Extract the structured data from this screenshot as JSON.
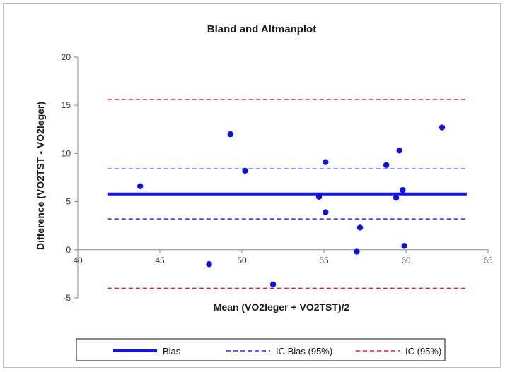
{
  "chart_data": {
    "type": "scatter",
    "title": "Bland and Altmanplot",
    "xlabel": "Mean (VO2leger + VO2TST)/2",
    "ylabel": "Difference (VO2TST - VO2leger)",
    "xlim": [
      40,
      65
    ],
    "ylim": [
      -5,
      20
    ],
    "x_ticks": [
      40,
      45,
      50,
      55,
      60,
      65
    ],
    "y_ticks": [
      -5,
      0,
      5,
      10,
      15,
      20
    ],
    "grid": false,
    "legend_position": "bottom",
    "points": {
      "color": "#1010e0",
      "x": [
        43.8,
        48.0,
        49.3,
        50.2,
        51.9,
        54.7,
        55.1,
        55.1,
        57.0,
        57.2,
        58.8,
        59.4,
        59.6,
        59.8,
        59.9,
        62.2
      ],
      "y": [
        6.6,
        -1.5,
        12.0,
        8.2,
        -3.6,
        5.5,
        9.1,
        3.9,
        -0.2,
        2.3,
        8.8,
        5.4,
        10.3,
        6.2,
        0.4,
        12.7
      ]
    },
    "lines": [
      {
        "name": "Bias",
        "y": 5.8,
        "x_range": [
          41.8,
          63.7
        ],
        "color": "#1414e6",
        "style": "solid"
      },
      {
        "name": "IC Bias (95%)",
        "y": 8.4,
        "x_range": [
          41.8,
          63.7
        ],
        "color": "#2a2ae6",
        "style": "dashed"
      },
      {
        "name": "IC Bias (95%)",
        "y": 3.2,
        "x_range": [
          41.8,
          63.7
        ],
        "color": "#2a2ae6",
        "style": "dashed",
        "legend": false
      },
      {
        "name": "IC (95%)",
        "y": 15.6,
        "x_range": [
          41.8,
          63.7
        ],
        "color": "#e02020",
        "style": "dashed"
      },
      {
        "name": "IC (95%)",
        "y": -4.0,
        "x_range": [
          41.8,
          63.7
        ],
        "color": "#e02020",
        "style": "dashed",
        "legend": false
      }
    ],
    "legend": [
      {
        "label": "Bias",
        "color": "#1414e6",
        "style": "solid"
      },
      {
        "label": "IC Bias (95%)",
        "color": "#2a2ae6",
        "style": "dashed"
      },
      {
        "label": "IC (95%)",
        "color": "#e02020",
        "style": "dashed"
      }
    ]
  }
}
